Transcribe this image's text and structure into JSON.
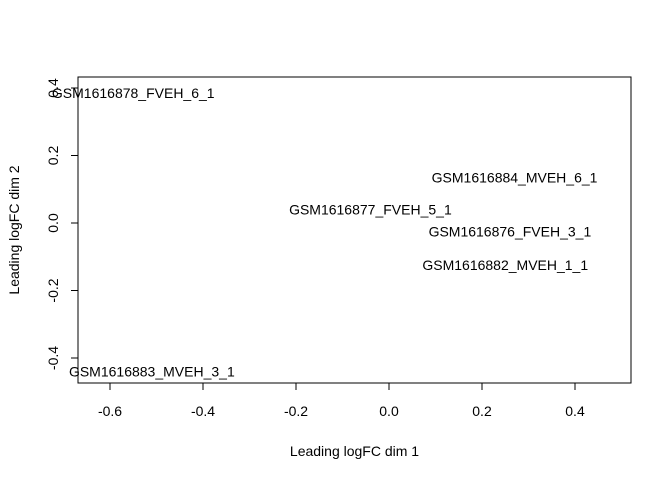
{
  "chart_data": {
    "type": "scatter",
    "title": "",
    "xlabel": "Leading logFC dim 1",
    "ylabel": "Leading logFC dim 2",
    "xlim": [
      -0.6,
      0.4
    ],
    "ylim": [
      -0.4,
      0.4
    ],
    "xticks": [
      -0.6,
      -0.4,
      -0.2,
      0.0,
      0.2,
      0.4
    ],
    "xtick_labels": [
      "-0.6",
      "-0.4",
      "-0.2",
      "0.0",
      "0.2",
      "0.4"
    ],
    "yticks": [
      -0.4,
      -0.2,
      0.0,
      0.2,
      0.4
    ],
    "ytick_labels": [
      "-0.4",
      "-0.2",
      "0.0",
      "0.2",
      "0.4"
    ],
    "grid": false,
    "legend": false,
    "marker": "text-label",
    "points": [
      {
        "label": "GSM1616878_FVEH_6_1",
        "x": -0.55,
        "y": 0.385
      },
      {
        "label": "GSM1616884_MVEH_6_1",
        "x": 0.27,
        "y": 0.135
      },
      {
        "label": "GSM1616877_FVEH_5_1",
        "x": -0.04,
        "y": 0.04
      },
      {
        "label": "GSM1616876_FVEH_3_1",
        "x": 0.26,
        "y": -0.025
      },
      {
        "label": "GSM1616882_MVEH_1_1",
        "x": 0.25,
        "y": -0.125
      },
      {
        "label": "GSM1616883_MVEH_3_1",
        "x": -0.51,
        "y": -0.44
      }
    ]
  }
}
